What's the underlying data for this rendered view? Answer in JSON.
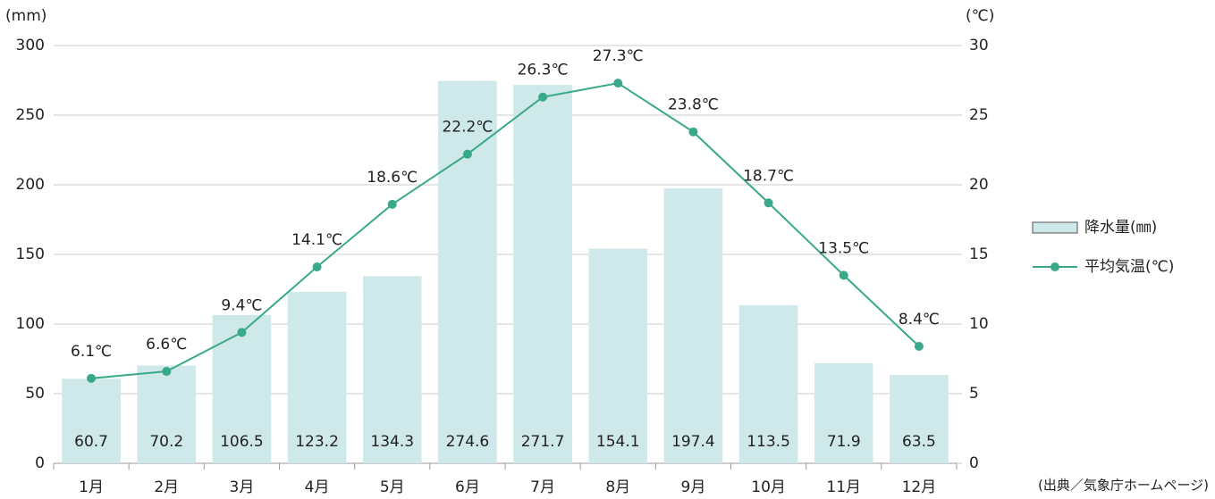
{
  "chart_data": {
    "type": "bar",
    "categories": [
      "1月",
      "2月",
      "3月",
      "4月",
      "5月",
      "6月",
      "7月",
      "8月",
      "9月",
      "10月",
      "11月",
      "12月"
    ],
    "series": [
      {
        "name": "降水量(㎜)",
        "type": "bar",
        "color": "#cfe8ea",
        "values": [
          60.7,
          70.2,
          106.5,
          123.2,
          134.3,
          274.6,
          271.7,
          154.1,
          197.4,
          113.5,
          71.9,
          63.5
        ]
      },
      {
        "name": "平均気温(℃)",
        "type": "line",
        "axis": "y2",
        "color": "#3aa98a",
        "values": [
          6.1,
          6.6,
          9.4,
          14.1,
          18.6,
          22.2,
          26.3,
          27.3,
          23.8,
          18.7,
          13.5,
          8.4
        ],
        "value_labels": [
          "6.1℃",
          "6.6℃",
          "9.4℃",
          "14.1℃",
          "18.6℃",
          "22.2℃",
          "26.3℃",
          "27.3℃",
          "23.8℃",
          "18.7℃",
          "13.5℃",
          "8.4℃"
        ]
      }
    ],
    "ylabel": "(mm)",
    "y2label": "(℃)",
    "ylim": [
      0,
      300
    ],
    "yticks": [
      0,
      50,
      100,
      150,
      200,
      250,
      300
    ],
    "y2lim": [
      0,
      30
    ],
    "y2ticks": [
      0,
      5,
      10,
      15,
      20,
      25,
      30
    ],
    "grid": true,
    "legend": "right",
    "source": "(出典／気象庁ホームページ)"
  }
}
